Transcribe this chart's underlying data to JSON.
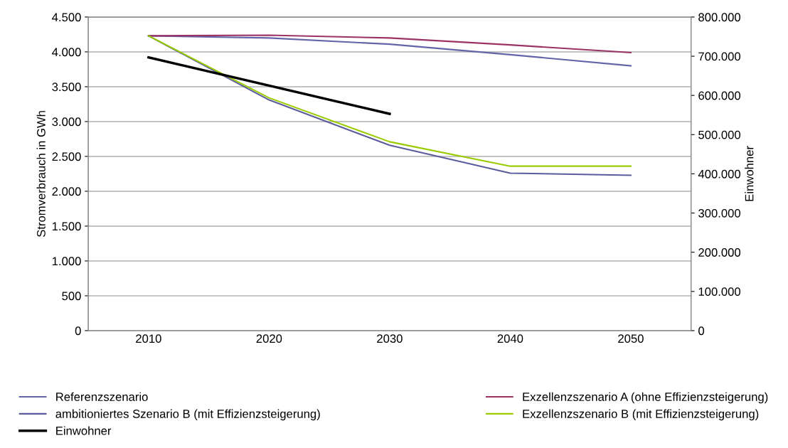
{
  "chart_data": {
    "type": "line",
    "ylabel": "Stromverbrauch in GWh",
    "y2label": "Einwohner",
    "x": [
      2010,
      2020,
      2030,
      2040,
      2050
    ],
    "xlim": [
      2005,
      2055
    ],
    "xticks": [
      2010,
      2020,
      2030,
      2040,
      2050
    ],
    "ylim": [
      0,
      4500
    ],
    "yticks": [
      {
        "value": 0,
        "label": "0"
      },
      {
        "value": 500,
        "label": "500"
      },
      {
        "value": 1000,
        "label": "1.000"
      },
      {
        "value": 1500,
        "label": "1.500"
      },
      {
        "value": 2000,
        "label": "2.000"
      },
      {
        "value": 2500,
        "label": "2.500"
      },
      {
        "value": 3000,
        "label": "3.000"
      },
      {
        "value": 3500,
        "label": "3.500"
      },
      {
        "value": 4000,
        "label": "4.000"
      },
      {
        "value": 4500,
        "label": "4.500"
      }
    ],
    "y2lim": [
      0,
      800000
    ],
    "y2ticks": [
      {
        "value": 0,
        "label": "0"
      },
      {
        "value": 100000,
        "label": "100.000"
      },
      {
        "value": 200000,
        "label": "200.000"
      },
      {
        "value": 300000,
        "label": "300.000"
      },
      {
        "value": 400000,
        "label": "400.000"
      },
      {
        "value": 500000,
        "label": "500.000"
      },
      {
        "value": 600000,
        "label": "600.000"
      },
      {
        "value": 700000,
        "label": "700.000"
      },
      {
        "value": 800000,
        "label": "800.000"
      }
    ],
    "grid": "y",
    "legend": "bottom",
    "line_style": "solid",
    "series": [
      {
        "name": "Referenzszenario",
        "color": "#6464a8",
        "values": [
          4230,
          4200,
          4110,
          3960,
          3800
        ]
      },
      {
        "name": "Exzellenzszenario A (ohne Effizienzsteigerung)",
        "color": "#9b3366",
        "values": [
          4230,
          4240,
          4200,
          4100,
          3990
        ]
      },
      {
        "name": "ambitioniertes Szenario B (mit Effizienzsteigerung)",
        "color": "#5c5c9c",
        "values": [
          4230,
          3310,
          2660,
          2260,
          2230
        ]
      },
      {
        "name": "Exzellenzszenario B (mit Effizienzsteigerung)",
        "color": "#99cc00",
        "values": [
          4230,
          3340,
          2710,
          2360,
          2360
        ]
      },
      {
        "name": "Einwohner",
        "color": "#000000",
        "axis": "y2",
        "x": [
          2010,
          2030
        ],
        "values": [
          697000,
          553000
        ]
      }
    ]
  }
}
